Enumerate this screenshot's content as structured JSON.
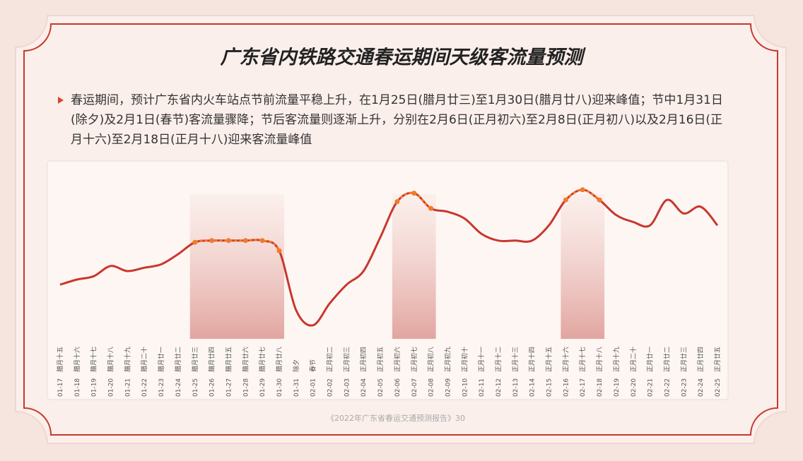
{
  "title": "广东省内铁路交通春运期间天级客流量预测",
  "description": "春运期间，预计广东省内火车站点节前流量平稳上升，在1月25日(腊月廿三)至1月30日(腊月廿八)迎来峰值；节中1月31日(除夕)及2月1日(春节)客流量骤降；节后客流量则逐渐上升，分别在2月6日(正月初六)至2月8日(正月初八)以及2月16日(正月十六)至2月18日(正月十八)迎来客流量峰值",
  "footer": "《2022年广东省春运交通预测报告》30",
  "chart_data": {
    "type": "line",
    "categories": [
      "01-17",
      "01-18",
      "01-19",
      "01-20",
      "01-21",
      "01-22",
      "01-23",
      "01-24",
      "01-25",
      "01-26",
      "01-27",
      "01-28",
      "01-29",
      "01-30",
      "01-31",
      "02-01",
      "02-02",
      "02-03",
      "02-04",
      "02-05",
      "02-06",
      "02-07",
      "02-08",
      "02-09",
      "02-10",
      "02-11",
      "02-12",
      "02-13",
      "02-14",
      "02-15",
      "02-16",
      "02-17",
      "02-18",
      "02-19",
      "02-20",
      "02-21",
      "02-22",
      "02-23",
      "02-24",
      "02-25"
    ],
    "lunar_labels": [
      "腊月十五",
      "腊月十六",
      "腊月十七",
      "腊月十八",
      "腊月十九",
      "腊月二十",
      "腊月廿一",
      "腊月廿二",
      "腊月廿三",
      "腊月廿四",
      "腊月廿五",
      "腊月廿六",
      "腊月廿七",
      "腊月廿八",
      "除夕",
      "春节",
      "正月初二",
      "正月初三",
      "正月初四",
      "正月初五",
      "正月初六",
      "正月初七",
      "正月初八",
      "正月初九",
      "正月初十",
      "正月十一",
      "正月十二",
      "正月十三",
      "正月十四",
      "正月十五",
      "正月十六",
      "正月十七",
      "正月十八",
      "正月十九",
      "正月二十",
      "正月廿一",
      "正月廿二",
      "正月廿三",
      "正月廿四",
      "正月廿五"
    ],
    "values": [
      32,
      35,
      37,
      43,
      40,
      42,
      44,
      50,
      57,
      58,
      58,
      58,
      58,
      52,
      17,
      8,
      21,
      32,
      40,
      60,
      81,
      86,
      77,
      75,
      71,
      62,
      58,
      58,
      58,
      67,
      82,
      88,
      82,
      73,
      69,
      67,
      82,
      74,
      78,
      67
    ],
    "ylim": [
      0,
      100
    ],
    "color": "#c8372d",
    "highlight_color": "#f07b2a",
    "highlight_ranges": [
      [
        "01-25",
        "01-30"
      ],
      [
        "02-06",
        "02-08"
      ],
      [
        "02-16",
        "02-18"
      ]
    ]
  }
}
